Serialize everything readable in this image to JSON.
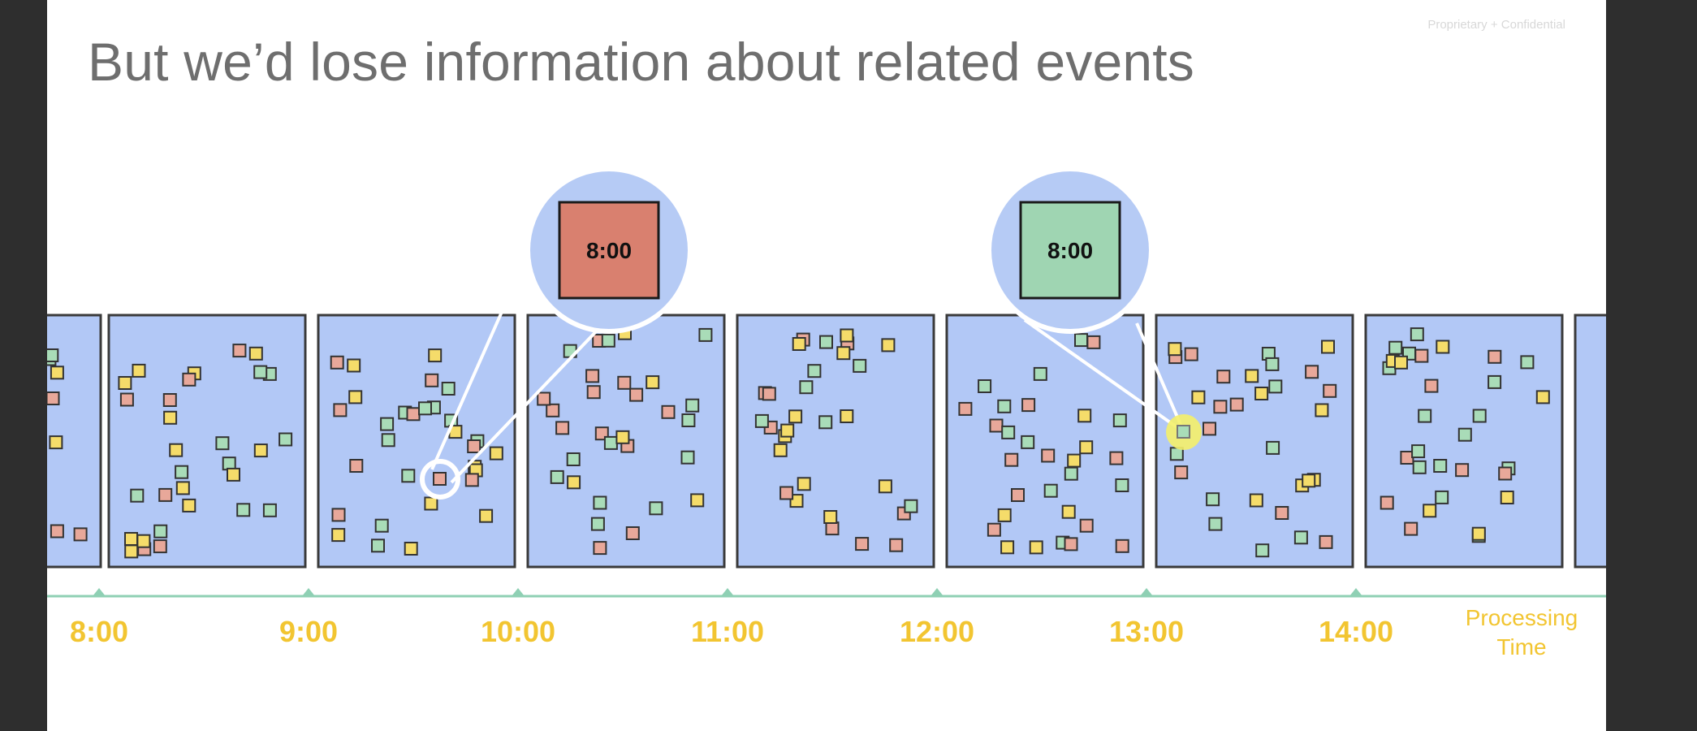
{
  "slide": {
    "title": "But we’d lose information about related events",
    "confidential_label": "Proprietary + Confidential"
  },
  "colors": {
    "window_fill": "#b2c8f6",
    "window_stroke": "#3a3a3a",
    "event_red": "#e8a89a",
    "event_yellow": "#f5dc6a",
    "event_green": "#a9dcb8",
    "callout_bubble": "#b6cbf5",
    "callout_red": "#d9806f",
    "callout_green": "#9fd5b2",
    "axis_line": "#8fd0b4",
    "axis_labels": "#f2c531",
    "highlight_marker": "#f4ef6a"
  },
  "chart_data": {
    "type": "timeline",
    "axis_title": "Processing\nTime",
    "ticks": [
      "8:00",
      "9:00",
      "10:00",
      "11:00",
      "12:00",
      "13:00",
      "14:00"
    ],
    "windows": [
      "8:00",
      "9:00",
      "10:00",
      "11:00",
      "12:00",
      "13:00",
      "14:00"
    ],
    "event_types": [
      "red",
      "yellow",
      "green"
    ],
    "callouts": [
      {
        "label": "8:00",
        "color": "red",
        "source_window": "9:00",
        "target_window": "10:00"
      },
      {
        "label": "8:00",
        "color": "green",
        "source_window": "13:00",
        "target_window": "12:00"
      }
    ]
  }
}
